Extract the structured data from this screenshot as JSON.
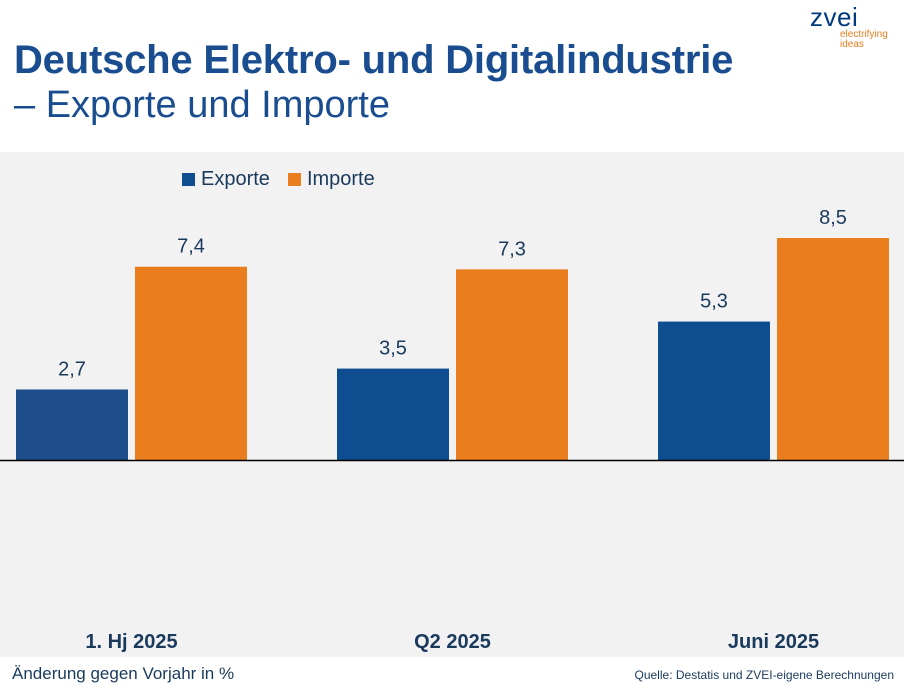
{
  "header": {
    "title_line1": "Deutsche Elektro- und Digitalindustrie",
    "title_line2": "– Exporte und Importe"
  },
  "logo": {
    "word": "zvei",
    "tagline_1": "electrifying",
    "tagline_2": "ideas"
  },
  "footer": {
    "unit_note": "Änderung gegen Vorjahr in %",
    "source": "Quelle: Destatis und ZVEI-eigene Berechnungen"
  },
  "colors": {
    "exports": "#0e4d8f",
    "exports_first": "#1f4e8c",
    "imports": "#ea7d1e",
    "title": "#1a4d8f"
  },
  "chart_data": {
    "type": "bar",
    "title": "Deutsche Elektro- und Digitalindustrie – Exporte und Importe",
    "xlabel": "",
    "ylabel": "Änderung gegen Vorjahr in %",
    "categories": [
      "1. Hj 2025",
      "Q2 2025",
      "Juni 2025"
    ],
    "series": [
      {
        "name": "Exporte",
        "values": [
          2.7,
          3.5,
          5.3
        ],
        "labels": [
          "2,7",
          "3,5",
          "5,3"
        ]
      },
      {
        "name": "Importe",
        "values": [
          7.4,
          7.3,
          8.5
        ],
        "labels": [
          "7,4",
          "7,3",
          "8,5"
        ]
      }
    ],
    "ylim": [
      0,
      8.5
    ],
    "grid": false,
    "legend": "top-left"
  }
}
